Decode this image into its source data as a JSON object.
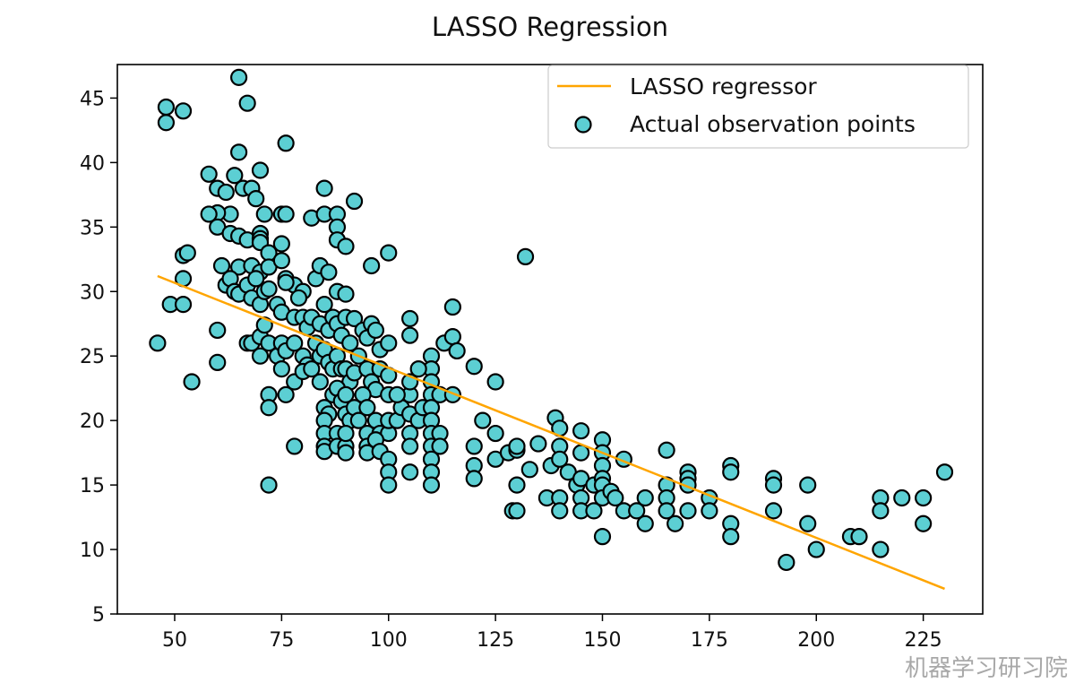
{
  "chart_data": {
    "type": "scatter",
    "title": "LASSO Regression",
    "xlabel": "",
    "ylabel": "",
    "xlim": [
      36.6,
      238.9
    ],
    "ylim": [
      5.0,
      47.6
    ],
    "xticks": [
      50,
      75,
      100,
      125,
      150,
      175,
      200,
      225
    ],
    "yticks": [
      5,
      10,
      15,
      20,
      25,
      30,
      35,
      40,
      45
    ],
    "grid": false,
    "legend": {
      "placement": "upper-right",
      "entries": [
        "LASSO regressor",
        "Actual observation points"
      ]
    },
    "colors": {
      "line": "#ffa500",
      "marker_fill": "#5ccfd3",
      "marker_edge": "#000000"
    },
    "series": [
      {
        "name": "LASSO regressor",
        "type": "line",
        "x": [
          46,
          230
        ],
        "y": [
          31.2,
          6.95
        ]
      },
      {
        "name": "Actual observation points",
        "type": "scatter",
        "points": [
          [
            48,
            43.1
          ],
          [
            48,
            44.3
          ],
          [
            52,
            44
          ],
          [
            65,
            46.6
          ],
          [
            67,
            44.6
          ],
          [
            76,
            41.5
          ],
          [
            65,
            40.8
          ],
          [
            58,
            39.1
          ],
          [
            70,
            39.4
          ],
          [
            60,
            38
          ],
          [
            62,
            37.7
          ],
          [
            64,
            39
          ],
          [
            66,
            38
          ],
          [
            68,
            38
          ],
          [
            69,
            37.2
          ],
          [
            63,
            36
          ],
          [
            60,
            36.1
          ],
          [
            58,
            36
          ],
          [
            71,
            36
          ],
          [
            75,
            36
          ],
          [
            76,
            36
          ],
          [
            82,
            35.7
          ],
          [
            85,
            36
          ],
          [
            88,
            36
          ],
          [
            92,
            37
          ],
          [
            85,
            38
          ],
          [
            88,
            35
          ],
          [
            88,
            34
          ],
          [
            90,
            33.5
          ],
          [
            96,
            32
          ],
          [
            100,
            33
          ],
          [
            132,
            32.7
          ],
          [
            60,
            35
          ],
          [
            63,
            34.5
          ],
          [
            65,
            34.3
          ],
          [
            67,
            34
          ],
          [
            70,
            34.5
          ],
          [
            70,
            34.1
          ],
          [
            70,
            33.8
          ],
          [
            72,
            33
          ],
          [
            75,
            33.7
          ],
          [
            52,
            32.8
          ],
          [
            53,
            33
          ],
          [
            61,
            32
          ],
          [
            65,
            31.9
          ],
          [
            68,
            32
          ],
          [
            70,
            31.5
          ],
          [
            72,
            31.9
          ],
          [
            75,
            32.4
          ],
          [
            76,
            31
          ],
          [
            78,
            30.5
          ],
          [
            80,
            30
          ],
          [
            83,
            31
          ],
          [
            84,
            32
          ],
          [
            86,
            31.5
          ],
          [
            88,
            30
          ],
          [
            90,
            29.8
          ],
          [
            52,
            31
          ],
          [
            62,
            30.5
          ],
          [
            63,
            31
          ],
          [
            64,
            30
          ],
          [
            65,
            29.8
          ],
          [
            67,
            30.5
          ],
          [
            68,
            29.5
          ],
          [
            69,
            31
          ],
          [
            70,
            29
          ],
          [
            71,
            30
          ],
          [
            72,
            30.2
          ],
          [
            74,
            29
          ],
          [
            75,
            28.4
          ],
          [
            76,
            30.7
          ],
          [
            78,
            28
          ],
          [
            79,
            29.5
          ],
          [
            80,
            28
          ],
          [
            81,
            27.2
          ],
          [
            82,
            28
          ],
          [
            84,
            27.5
          ],
          [
            85,
            29
          ],
          [
            86,
            27
          ],
          [
            87,
            28
          ],
          [
            88,
            27.5
          ],
          [
            89,
            26.6
          ],
          [
            90,
            28
          ],
          [
            91,
            26
          ],
          [
            92,
            27.9
          ],
          [
            94,
            27
          ],
          [
            95,
            26.4
          ],
          [
            96,
            27.5
          ],
          [
            97,
            27
          ],
          [
            98,
            25.5
          ],
          [
            49,
            29
          ],
          [
            52,
            29
          ],
          [
            46,
            26
          ],
          [
            60,
            27
          ],
          [
            67,
            26
          ],
          [
            68,
            26
          ],
          [
            70,
            26.5
          ],
          [
            71,
            27.4
          ],
          [
            72,
            26
          ],
          [
            74,
            25
          ],
          [
            75,
            26
          ],
          [
            76,
            25.4
          ],
          [
            78,
            26
          ],
          [
            80,
            25
          ],
          [
            81,
            24.3
          ],
          [
            83,
            26
          ],
          [
            84,
            25
          ],
          [
            85,
            25.5
          ],
          [
            86,
            24.5
          ],
          [
            87,
            24
          ],
          [
            88,
            25
          ],
          [
            89,
            24
          ],
          [
            90,
            24
          ],
          [
            91,
            23
          ],
          [
            92,
            23.7
          ],
          [
            93,
            25
          ],
          [
            95,
            24
          ],
          [
            96,
            23
          ],
          [
            97,
            22.4
          ],
          [
            98,
            24
          ],
          [
            100,
            23.5
          ],
          [
            60,
            24.5
          ],
          [
            54,
            23
          ],
          [
            70,
            25
          ],
          [
            72,
            22
          ],
          [
            72,
            21
          ],
          [
            75,
            24
          ],
          [
            76,
            22
          ],
          [
            78,
            23
          ],
          [
            80,
            23.8
          ],
          [
            82,
            24
          ],
          [
            84,
            23
          ],
          [
            85,
            21
          ],
          [
            86,
            20.5
          ],
          [
            87,
            22
          ],
          [
            88,
            22.5
          ],
          [
            89,
            21.5
          ],
          [
            90,
            22
          ],
          [
            90,
            20.5
          ],
          [
            91,
            20
          ],
          [
            92,
            21
          ],
          [
            93,
            20
          ],
          [
            94,
            22
          ],
          [
            95,
            21
          ],
          [
            95,
            19
          ],
          [
            96,
            18
          ],
          [
            97,
            20
          ],
          [
            98,
            19
          ],
          [
            100,
            19
          ],
          [
            100,
            22
          ],
          [
            78,
            18
          ],
          [
            72,
            15
          ],
          [
            85,
            20
          ],
          [
            85,
            19
          ],
          [
            85,
            18
          ],
          [
            85,
            17.6
          ],
          [
            88,
            19
          ],
          [
            88,
            18
          ],
          [
            90,
            18
          ],
          [
            90,
            19
          ],
          [
            90,
            17.5
          ],
          [
            95,
            18
          ],
          [
            95,
            17.5
          ],
          [
            97,
            18.5
          ],
          [
            98,
            17.6
          ],
          [
            100,
            17
          ],
          [
            100,
            16
          ],
          [
            100,
            15
          ],
          [
            100,
            20
          ],
          [
            102,
            20
          ],
          [
            103,
            21
          ],
          [
            105,
            22
          ],
          [
            105,
            20.5
          ],
          [
            105,
            19
          ],
          [
            105,
            18
          ],
          [
            105,
            16
          ],
          [
            107,
            20
          ],
          [
            108,
            21
          ],
          [
            110,
            25
          ],
          [
            110,
            24
          ],
          [
            110,
            23
          ],
          [
            110,
            22
          ],
          [
            110,
            21
          ],
          [
            110,
            20
          ],
          [
            110,
            19
          ],
          [
            110,
            18
          ],
          [
            110,
            17
          ],
          [
            110,
            16
          ],
          [
            110,
            15
          ],
          [
            112,
            22
          ],
          [
            112,
            19
          ],
          [
            112,
            18
          ],
          [
            113,
            26
          ],
          [
            115,
            26.5
          ],
          [
            115,
            28.8
          ],
          [
            115,
            22
          ],
          [
            116,
            25.4
          ],
          [
            120,
            24.2
          ],
          [
            125,
            23
          ],
          [
            105,
            27.9
          ],
          [
            105,
            26.6
          ],
          [
            105,
            23
          ],
          [
            100,
            26
          ],
          [
            102,
            22
          ],
          [
            107,
            24
          ],
          [
            120,
            18
          ],
          [
            120,
            16.5
          ],
          [
            120,
            15.5
          ],
          [
            122,
            20
          ],
          [
            125,
            19
          ],
          [
            125,
            17
          ],
          [
            128,
            17.5
          ],
          [
            129,
            13
          ],
          [
            130,
            13
          ],
          [
            130,
            15
          ],
          [
            130,
            17.7
          ],
          [
            130,
            18
          ],
          [
            133,
            16.2
          ],
          [
            135,
            18.2
          ],
          [
            137,
            14
          ],
          [
            138,
            16.5
          ],
          [
            139,
            20.2
          ],
          [
            140,
            19.4
          ],
          [
            140,
            18
          ],
          [
            140,
            17
          ],
          [
            140,
            14
          ],
          [
            140,
            13
          ],
          [
            142,
            16
          ],
          [
            144,
            15
          ],
          [
            145,
            19.2
          ],
          [
            145,
            17.5
          ],
          [
            145,
            15.5
          ],
          [
            145,
            14
          ],
          [
            145,
            13
          ],
          [
            148,
            15
          ],
          [
            148,
            13
          ],
          [
            150,
            18.5
          ],
          [
            150,
            17.5
          ],
          [
            150,
            16.5
          ],
          [
            150,
            15.5
          ],
          [
            150,
            15
          ],
          [
            150,
            14
          ],
          [
            150,
            11
          ],
          [
            152,
            14.5
          ],
          [
            153,
            14
          ],
          [
            155,
            17
          ],
          [
            155,
            13
          ],
          [
            158,
            13
          ],
          [
            160,
            12
          ],
          [
            160,
            14
          ],
          [
            165,
            17.7
          ],
          [
            165,
            15
          ],
          [
            165,
            14
          ],
          [
            165,
            13
          ],
          [
            167,
            12
          ],
          [
            170,
            16
          ],
          [
            170,
            15.5
          ],
          [
            170,
            15
          ],
          [
            170,
            13
          ],
          [
            175,
            14
          ],
          [
            175,
            13
          ],
          [
            180,
            16.5
          ],
          [
            180,
            16
          ],
          [
            180,
            12
          ],
          [
            180,
            11
          ],
          [
            190,
            15.5
          ],
          [
            190,
            15
          ],
          [
            190,
            13
          ],
          [
            193,
            9
          ],
          [
            198,
            15
          ],
          [
            198,
            12
          ],
          [
            200,
            10
          ],
          [
            208,
            11
          ],
          [
            210,
            11
          ],
          [
            215,
            14
          ],
          [
            215,
            13
          ],
          [
            215,
            10
          ],
          [
            220,
            14
          ],
          [
            225,
            14
          ],
          [
            225,
            12
          ],
          [
            230,
            16
          ]
        ]
      }
    ]
  },
  "watermark": "机器学习研习院"
}
